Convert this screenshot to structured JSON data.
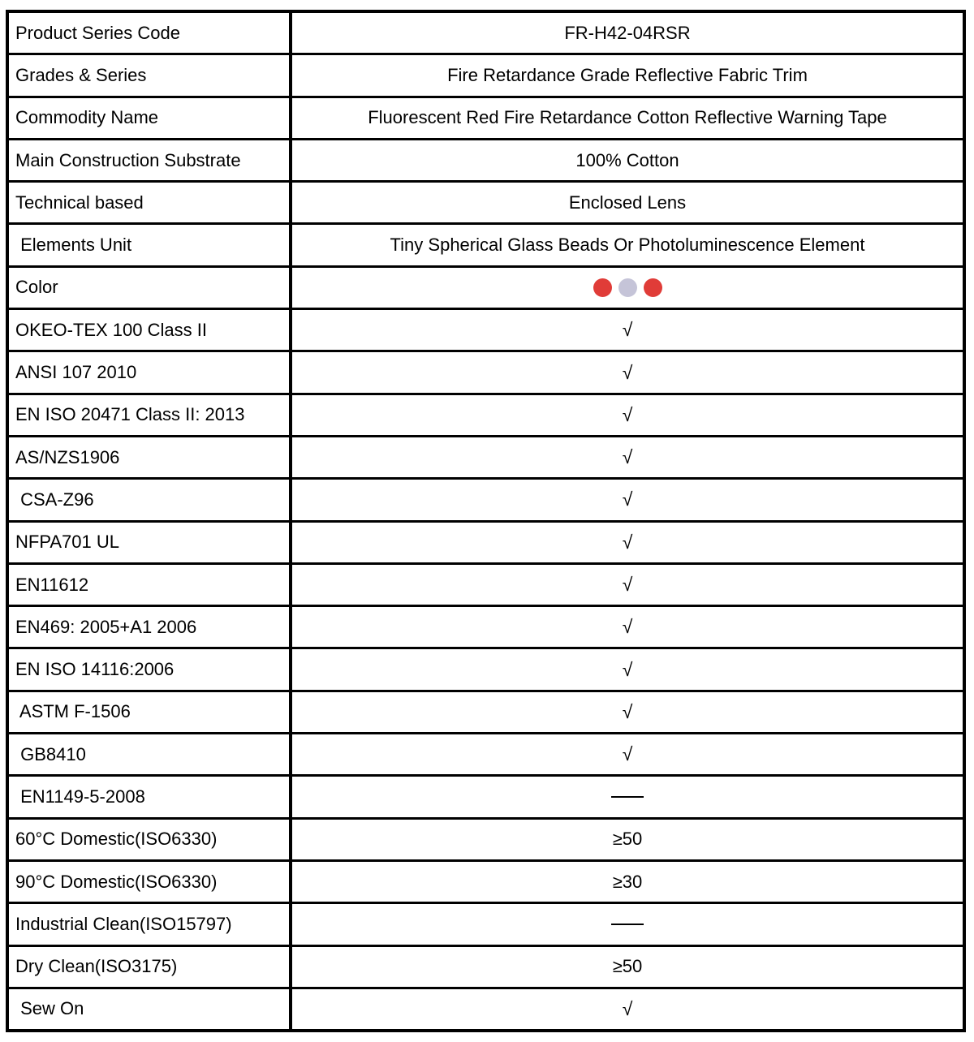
{
  "table": {
    "name": "product-specification-table",
    "border_color": "#000000",
    "swatch_red": "#e03c38",
    "swatch_lavender": "#c5c4d8",
    "check_symbol": "√",
    "dash_symbol": "——",
    "rows": [
      {
        "label": "Product Series Code",
        "type": "text",
        "value": "FR-H42-04RSR"
      },
      {
        "label": "Grades & Series",
        "type": "text",
        "value": "Fire Retardance Grade Reflective Fabric Trim"
      },
      {
        "label": "Commodity Name",
        "type": "text",
        "value": "Fluorescent Red Fire Retardance Cotton Reflective Warning Tape"
      },
      {
        "label": "Main Construction Substrate",
        "type": "text",
        "value": "100% Cotton"
      },
      {
        "label": "Technical based",
        "type": "text",
        "value": "Enclosed Lens"
      },
      {
        "label": " Elements Unit",
        "type": "text",
        "value": "Tiny Spherical Glass Beads Or Photoluminescence Element"
      },
      {
        "label": "Color",
        "type": "swatches",
        "swatches": [
          "#e03c38",
          "#c5c4d8",
          "#e03c38"
        ]
      },
      {
        "label": "OKEO-TEX 100 Class II",
        "type": "check",
        "value": "√"
      },
      {
        "label": "ANSI 107 2010",
        "type": "check",
        "value": "√"
      },
      {
        "label": "EN ISO 20471 Class II: 2013",
        "type": "check",
        "value": "√"
      },
      {
        "label": "AS/NZS1906",
        "type": "check",
        "value": "√"
      },
      {
        "label": " CSA-Z96",
        "type": "check",
        "value": "√"
      },
      {
        "label": "NFPA701 UL",
        "type": "check",
        "value": "√"
      },
      {
        "label": "EN11612",
        "type": "check",
        "value": "√"
      },
      {
        "label": "EN469: 2005+A1 2006",
        "type": "check",
        "value": "√"
      },
      {
        "label": "EN ISO 14116:2006",
        "type": "check",
        "value": "√"
      },
      {
        "label": " ASTM F-1506",
        "type": "check",
        "value": "√"
      },
      {
        "label": " GB8410",
        "type": "check",
        "value": "√"
      },
      {
        "label": " EN1149-5-2008",
        "type": "dash",
        "value": "——"
      },
      {
        "label": "60°C Domestic(ISO6330)",
        "type": "text",
        "value": "≥50"
      },
      {
        "label": "90°C Domestic(ISO6330)",
        "type": "text",
        "value": "≥30"
      },
      {
        "label": "Industrial Clean(ISO15797)",
        "type": "dash",
        "value": "——"
      },
      {
        "label": "Dry Clean(ISO3175)",
        "type": "text",
        "value": "≥50"
      },
      {
        "label": " Sew On",
        "type": "check",
        "value": "√"
      }
    ]
  }
}
